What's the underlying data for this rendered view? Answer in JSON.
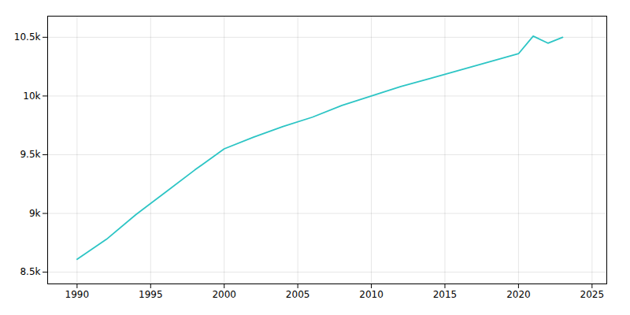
{
  "chart_data": {
    "type": "line",
    "x": [
      1990,
      1992,
      1994,
      1996,
      1998,
      2000,
      2002,
      2004,
      2006,
      2008,
      2010,
      2012,
      2014,
      2016,
      2018,
      2020,
      2021,
      2022,
      2023
    ],
    "values": [
      8610,
      8780,
      8990,
      9180,
      9370,
      9550,
      9650,
      9740,
      9820,
      9920,
      10000,
      10080,
      10150,
      10220,
      10290,
      10360,
      10510,
      10450,
      10500
    ],
    "color": "#2dc5c5",
    "xlim": [
      1988,
      2026
    ],
    "xticks": [
      1990,
      1995,
      2000,
      2005,
      2010,
      2015,
      2020,
      2025
    ],
    "ylim": [
      8400,
      10680
    ],
    "yticks": [
      {
        "value": 8500,
        "label": "8.5k"
      },
      {
        "value": 9000,
        "label": "9k"
      },
      {
        "value": 9500,
        "label": "9.5k"
      },
      {
        "value": 10000,
        "label": "10k"
      },
      {
        "value": 10500,
        "label": "10.5k"
      }
    ],
    "grid": true
  }
}
